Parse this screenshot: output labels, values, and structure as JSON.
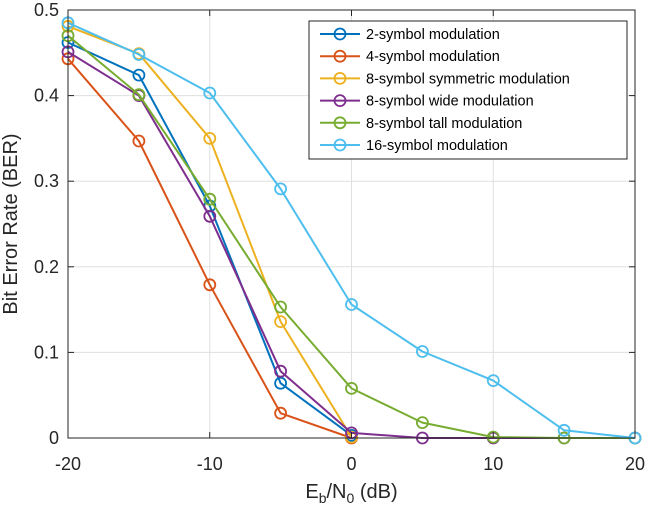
{
  "chart_data": {
    "type": "line",
    "title": "",
    "xlabel": "Eb/N0 (dB)",
    "xlabel_parts": {
      "main1": "E",
      "sub1": "b",
      "main2": "/N",
      "sub2": "0",
      "rest": " (dB)"
    },
    "ylabel": "Bit Error Rate (BER)",
    "xlim": [
      -20,
      20
    ],
    "ylim": [
      0,
      0.5
    ],
    "xticks": [
      -20,
      -10,
      0,
      10,
      20
    ],
    "xtick_labels": [
      "-20",
      "-10",
      "0",
      "10",
      "20"
    ],
    "yticks": [
      0,
      0.1,
      0.2,
      0.3,
      0.4,
      0.5
    ],
    "ytick_labels": [
      "0",
      "0.1",
      "0.2",
      "0.3",
      "0.4",
      "0.5"
    ],
    "grid": true,
    "legend_position": "top-right",
    "x": [
      -20,
      -15,
      -10,
      -5,
      0,
      5,
      10,
      15,
      20
    ],
    "series": [
      {
        "name": "2-symbol modulation",
        "color": "#0072BD",
        "x": [
          -20,
          -15,
          -10,
          -5,
          0
        ],
        "values": [
          0.462,
          0.424,
          0.271,
          0.064,
          0.003
        ]
      },
      {
        "name": "4-symbol modulation",
        "color": "#D95319",
        "x": [
          -20,
          -15,
          -10,
          -5,
          0
        ],
        "values": [
          0.443,
          0.347,
          0.179,
          0.029,
          0.0
        ]
      },
      {
        "name": "8-symbol symmetric modulation",
        "color": "#EDB120",
        "x": [
          -20,
          -15,
          -10,
          -5,
          0
        ],
        "values": [
          0.481,
          0.449,
          0.35,
          0.136,
          0.001
        ]
      },
      {
        "name": "8-symbol wide modulation",
        "color": "#7E2F8E",
        "x": [
          -20,
          -15,
          -10,
          -5,
          0,
          5,
          10,
          15,
          20
        ],
        "values": [
          0.451,
          0.4,
          0.259,
          0.078,
          0.006,
          0.0,
          0.0,
          0.0,
          0.0
        ]
      },
      {
        "name": "8-symbol tall modulation",
        "color": "#77AC30",
        "x": [
          -20,
          -15,
          -10,
          -5,
          0,
          5,
          10,
          15,
          20
        ],
        "values": [
          0.47,
          0.401,
          0.279,
          0.153,
          0.058,
          0.018,
          0.001,
          0.0,
          0.0
        ]
      },
      {
        "name": "16-symbol modulation",
        "color": "#4DBEEE",
        "x": [
          -20,
          -15,
          -10,
          -5,
          0,
          5,
          10,
          15,
          20
        ],
        "values": [
          0.485,
          0.448,
          0.403,
          0.291,
          0.156,
          0.101,
          0.067,
          0.009,
          0.0
        ]
      }
    ]
  }
}
